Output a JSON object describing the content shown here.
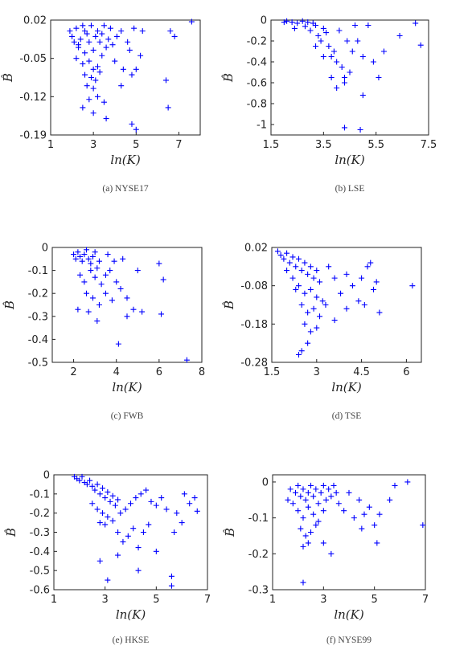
{
  "chart_data": [
    {
      "id": "a",
      "type": "scatter",
      "caption": "(a) NYSE17",
      "xlabel": "ln(K)",
      "ylabel": "B̂",
      "xlim": [
        1,
        8
      ],
      "ylim": [
        -0.19,
        0.02
      ],
      "xticks": [
        1,
        3,
        5,
        7
      ],
      "yticks": [
        0.02,
        -0.05,
        -0.12,
        -0.19
      ],
      "xticklabels": [
        "1",
        "3",
        "5",
        "7"
      ],
      "yticklabels": [
        "0.02",
        "-0.05",
        "-0.12",
        "-0.19"
      ],
      "marker": "+",
      "color": "#0000ff",
      "grid": false,
      "points": [
        [
          1.9,
          0.0
        ],
        [
          2.0,
          -0.01
        ],
        [
          2.1,
          -0.02
        ],
        [
          2.2,
          0.005
        ],
        [
          2.3,
          -0.03
        ],
        [
          2.4,
          -0.015
        ],
        [
          2.5,
          0.01
        ],
        [
          2.6,
          -0.04
        ],
        [
          2.7,
          -0.005
        ],
        [
          2.8,
          -0.02
        ],
        [
          2.9,
          0.01
        ],
        [
          3.0,
          -0.035
        ],
        [
          3.1,
          -0.01
        ],
        [
          3.2,
          0.0
        ],
        [
          3.3,
          -0.02
        ],
        [
          3.4,
          -0.045
        ],
        [
          3.5,
          0.01
        ],
        [
          3.6,
          -0.03
        ],
        [
          3.7,
          -0.015
        ],
        [
          3.8,
          0.005
        ],
        [
          2.2,
          -0.05
        ],
        [
          2.5,
          -0.06
        ],
        [
          2.8,
          -0.055
        ],
        [
          3.0,
          -0.07
        ],
        [
          3.2,
          -0.065
        ],
        [
          2.6,
          -0.08
        ],
        [
          2.9,
          -0.085
        ],
        [
          3.1,
          -0.09
        ],
        [
          3.3,
          -0.075
        ],
        [
          2.7,
          -0.1
        ],
        [
          3.0,
          -0.105
        ],
        [
          3.2,
          -0.12
        ],
        [
          2.8,
          -0.125
        ],
        [
          3.5,
          -0.13
        ],
        [
          3.0,
          -0.15
        ],
        [
          2.5,
          -0.14
        ],
        [
          3.6,
          -0.16
        ],
        [
          4.1,
          -0.01
        ],
        [
          4.3,
          0.0
        ],
        [
          4.6,
          -0.02
        ],
        [
          4.9,
          0.005
        ],
        [
          5.3,
          0.0
        ],
        [
          4.7,
          -0.035
        ],
        [
          5.2,
          -0.045
        ],
        [
          5.0,
          -0.07
        ],
        [
          4.0,
          -0.055
        ],
        [
          4.4,
          -0.07
        ],
        [
          4.8,
          -0.08
        ],
        [
          4.3,
          -0.1
        ],
        [
          4.8,
          -0.17
        ],
        [
          5.0,
          -0.18
        ],
        [
          6.4,
          -0.09
        ],
        [
          6.5,
          -0.14
        ],
        [
          6.6,
          0.0
        ],
        [
          6.8,
          -0.01
        ],
        [
          7.6,
          0.017
        ],
        [
          2.3,
          -0.025
        ],
        [
          2.6,
          0.0
        ],
        [
          3.4,
          -0.005
        ],
        [
          3.9,
          -0.025
        ]
      ]
    },
    {
      "id": "b",
      "type": "scatter",
      "caption": "(b) LSE",
      "xlabel": "ln(K)",
      "ylabel": "B̂",
      "xlim": [
        1.5,
        7.5
      ],
      "ylim": [
        -1.1,
        0
      ],
      "xticks": [
        1.5,
        3.5,
        5.5,
        7.5
      ],
      "yticks": [
        0,
        -0.2,
        -0.4,
        -0.6,
        -0.8,
        -1.0
      ],
      "xticklabels": [
        "1.5",
        "3.5",
        "5.5",
        "7.5"
      ],
      "yticklabels": [
        "0",
        "-0.2",
        "-0.4",
        "-0.6",
        "-0.8",
        "-1"
      ],
      "marker": "+",
      "color": "#0000ff",
      "grid": false,
      "points": [
        [
          2.0,
          -0.02
        ],
        [
          2.1,
          -0.01
        ],
        [
          2.3,
          -0.02
        ],
        [
          2.5,
          -0.03
        ],
        [
          2.7,
          -0.01
        ],
        [
          2.9,
          -0.02
        ],
        [
          3.1,
          -0.03
        ],
        [
          2.4,
          -0.08
        ],
        [
          2.8,
          -0.06
        ],
        [
          3.0,
          -0.1
        ],
        [
          3.2,
          -0.05
        ],
        [
          3.3,
          -0.15
        ],
        [
          3.4,
          -0.2
        ],
        [
          3.5,
          -0.08
        ],
        [
          3.6,
          -0.12
        ],
        [
          3.7,
          -0.25
        ],
        [
          3.8,
          -0.35
        ],
        [
          3.9,
          -0.3
        ],
        [
          4.0,
          -0.4
        ],
        [
          4.1,
          -0.1
        ],
        [
          4.2,
          -0.45
        ],
        [
          4.3,
          -0.55
        ],
        [
          3.8,
          -0.55
        ],
        [
          4.0,
          -0.65
        ],
        [
          4.3,
          -0.6
        ],
        [
          4.5,
          -0.5
        ],
        [
          4.6,
          -0.3
        ],
        [
          4.8,
          -0.2
        ],
        [
          5.0,
          -0.35
        ],
        [
          5.2,
          -0.05
        ],
        [
          5.4,
          -0.4
        ],
        [
          5.6,
          -0.55
        ],
        [
          5.8,
          -0.3
        ],
        [
          4.3,
          -1.03
        ],
        [
          4.9,
          -1.05
        ],
        [
          5.0,
          -0.72
        ],
        [
          6.4,
          -0.15
        ],
        [
          7.0,
          -0.03
        ],
        [
          7.2,
          -0.24
        ],
        [
          4.7,
          -0.05
        ],
        [
          4.4,
          -0.2
        ],
        [
          3.5,
          -0.35
        ],
        [
          3.2,
          -0.25
        ]
      ]
    },
    {
      "id": "c",
      "type": "scatter",
      "caption": "(c) FWB",
      "xlabel": "ln(K)",
      "ylabel": "B̂",
      "xlim": [
        1,
        8
      ],
      "ylim": [
        -0.5,
        0
      ],
      "xticks": [
        2,
        4,
        6,
        8
      ],
      "yticks": [
        0,
        -0.1,
        -0.2,
        -0.3,
        -0.4,
        -0.5
      ],
      "xticklabels": [
        "2",
        "4",
        "6",
        "8"
      ],
      "yticklabels": [
        "0",
        "-0.1",
        "-0.2",
        "-0.3",
        "-0.4",
        "-0.5"
      ],
      "marker": "+",
      "color": "#0000ff",
      "grid": false,
      "points": [
        [
          2.0,
          -0.03
        ],
        [
          2.1,
          -0.05
        ],
        [
          2.2,
          -0.02
        ],
        [
          2.3,
          -0.04
        ],
        [
          2.4,
          -0.06
        ],
        [
          2.5,
          -0.03
        ],
        [
          2.6,
          -0.01
        ],
        [
          2.7,
          -0.05
        ],
        [
          2.8,
          -0.07
        ],
        [
          2.9,
          -0.04
        ],
        [
          3.0,
          -0.02
        ],
        [
          3.1,
          -0.09
        ],
        [
          3.2,
          -0.06
        ],
        [
          2.3,
          -0.12
        ],
        [
          2.5,
          -0.15
        ],
        [
          2.8,
          -0.1
        ],
        [
          3.0,
          -0.13
        ],
        [
          3.3,
          -0.16
        ],
        [
          3.5,
          -0.12
        ],
        [
          2.6,
          -0.2
        ],
        [
          2.9,
          -0.22
        ],
        [
          3.2,
          -0.25
        ],
        [
          3.5,
          -0.2
        ],
        [
          3.8,
          -0.23
        ],
        [
          2.2,
          -0.27
        ],
        [
          2.7,
          -0.28
        ],
        [
          3.1,
          -0.32
        ],
        [
          3.7,
          -0.1
        ],
        [
          4.0,
          -0.15
        ],
        [
          4.2,
          -0.18
        ],
        [
          4.5,
          -0.22
        ],
        [
          4.8,
          -0.27
        ],
        [
          5.0,
          -0.1
        ],
        [
          4.3,
          -0.05
        ],
        [
          4.1,
          -0.42
        ],
        [
          4.5,
          -0.3
        ],
        [
          5.2,
          -0.28
        ],
        [
          6.0,
          -0.07
        ],
        [
          6.2,
          -0.14
        ],
        [
          6.1,
          -0.29
        ],
        [
          7.3,
          -0.49
        ],
        [
          3.6,
          -0.03
        ],
        [
          3.9,
          -0.06
        ]
      ]
    },
    {
      "id": "d",
      "type": "scatter",
      "caption": "(d) TSE",
      "xlabel": "ln(K)",
      "ylabel": "B̂",
      "xlim": [
        1.5,
        6.5
      ],
      "ylim": [
        -0.28,
        0.02
      ],
      "xticks": [
        1.5,
        3,
        4.5,
        6
      ],
      "yticks": [
        0.02,
        -0.08,
        -0.18,
        -0.28
      ],
      "xticklabels": [
        "1.5",
        "3",
        "4.5",
        "6"
      ],
      "yticklabels": [
        "0.02",
        "-0.08",
        "-0.18",
        "-0.28"
      ],
      "marker": "+",
      "color": "#0000ff",
      "grid": false,
      "points": [
        [
          1.7,
          0.01
        ],
        [
          1.8,
          0.0
        ],
        [
          1.9,
          -0.01
        ],
        [
          2.0,
          0.005
        ],
        [
          2.1,
          -0.02
        ],
        [
          2.2,
          -0.005
        ],
        [
          2.3,
          -0.03
        ],
        [
          2.4,
          -0.01
        ],
        [
          2.5,
          -0.04
        ],
        [
          2.6,
          -0.02
        ],
        [
          2.7,
          -0.05
        ],
        [
          2.8,
          -0.03
        ],
        [
          2.9,
          -0.06
        ],
        [
          3.0,
          -0.04
        ],
        [
          3.1,
          -0.07
        ],
        [
          2.2,
          -0.06
        ],
        [
          2.4,
          -0.08
        ],
        [
          2.6,
          -0.1
        ],
        [
          2.8,
          -0.09
        ],
        [
          3.0,
          -0.11
        ],
        [
          3.2,
          -0.12
        ],
        [
          2.5,
          -0.13
        ],
        [
          2.7,
          -0.15
        ],
        [
          2.9,
          -0.14
        ],
        [
          3.1,
          -0.16
        ],
        [
          3.3,
          -0.13
        ],
        [
          2.6,
          -0.18
        ],
        [
          2.8,
          -0.2
        ],
        [
          3.0,
          -0.19
        ],
        [
          2.7,
          -0.23
        ],
        [
          2.5,
          -0.25
        ],
        [
          2.4,
          -0.26
        ],
        [
          3.4,
          -0.03
        ],
        [
          3.6,
          -0.06
        ],
        [
          3.8,
          -0.1
        ],
        [
          4.0,
          -0.05
        ],
        [
          4.2,
          -0.08
        ],
        [
          4.5,
          -0.06
        ],
        [
          4.7,
          -0.03
        ],
        [
          4.9,
          -0.09
        ],
        [
          3.6,
          -0.17
        ],
        [
          4.0,
          -0.14
        ],
        [
          4.4,
          -0.12
        ],
        [
          4.6,
          -0.13
        ],
        [
          5.1,
          -0.15
        ],
        [
          4.8,
          -0.02
        ],
        [
          5.0,
          -0.07
        ],
        [
          6.2,
          -0.08
        ],
        [
          2.0,
          -0.04
        ],
        [
          2.3,
          -0.09
        ]
      ]
    },
    {
      "id": "e",
      "type": "scatter",
      "caption": "(e) HKSE",
      "xlabel": "ln(K)",
      "ylabel": "B̂",
      "xlim": [
        1,
        7
      ],
      "ylim": [
        -0.6,
        0
      ],
      "xticks": [
        1,
        3,
        5,
        7
      ],
      "yticks": [
        0,
        -0.1,
        -0.2,
        -0.3,
        -0.4,
        -0.5,
        -0.6
      ],
      "xticklabels": [
        "1",
        "3",
        "5",
        "7"
      ],
      "yticklabels": [
        "0",
        "-0.1",
        "-0.2",
        "-0.3",
        "-0.4",
        "-0.5",
        "-0.6"
      ],
      "marker": "+",
      "color": "#0000ff",
      "grid": false,
      "points": [
        [
          1.8,
          -0.01
        ],
        [
          1.9,
          -0.02
        ],
        [
          2.0,
          -0.03
        ],
        [
          2.1,
          -0.01
        ],
        [
          2.2,
          -0.04
        ],
        [
          2.3,
          -0.05
        ],
        [
          2.4,
          -0.03
        ],
        [
          2.5,
          -0.06
        ],
        [
          2.6,
          -0.08
        ],
        [
          2.7,
          -0.05
        ],
        [
          2.8,
          -0.1
        ],
        [
          2.9,
          -0.07
        ],
        [
          3.0,
          -0.12
        ],
        [
          3.1,
          -0.09
        ],
        [
          3.2,
          -0.14
        ],
        [
          3.3,
          -0.11
        ],
        [
          3.4,
          -0.16
        ],
        [
          3.5,
          -0.13
        ],
        [
          2.5,
          -0.15
        ],
        [
          2.7,
          -0.18
        ],
        [
          2.9,
          -0.2
        ],
        [
          3.1,
          -0.22
        ],
        [
          2.8,
          -0.25
        ],
        [
          3.0,
          -0.26
        ],
        [
          3.3,
          -0.24
        ],
        [
          3.6,
          -0.2
        ],
        [
          3.8,
          -0.18
        ],
        [
          4.0,
          -0.15
        ],
        [
          4.2,
          -0.12
        ],
        [
          4.4,
          -0.1
        ],
        [
          4.6,
          -0.08
        ],
        [
          4.8,
          -0.14
        ],
        [
          5.0,
          -0.16
        ],
        [
          5.2,
          -0.12
        ],
        [
          5.4,
          -0.18
        ],
        [
          3.5,
          -0.3
        ],
        [
          3.7,
          -0.35
        ],
        [
          3.9,
          -0.32
        ],
        [
          4.1,
          -0.28
        ],
        [
          4.3,
          -0.38
        ],
        [
          4.5,
          -0.3
        ],
        [
          4.7,
          -0.26
        ],
        [
          2.8,
          -0.45
        ],
        [
          3.1,
          -0.55
        ],
        [
          3.5,
          -0.42
        ],
        [
          4.3,
          -0.5
        ],
        [
          5.0,
          -0.4
        ],
        [
          5.6,
          -0.53
        ],
        [
          5.6,
          -0.58
        ],
        [
          5.7,
          -0.3
        ],
        [
          5.8,
          -0.2
        ],
        [
          6.0,
          -0.25
        ],
        [
          6.1,
          -0.1
        ],
        [
          6.3,
          -0.15
        ],
        [
          6.5,
          -0.12
        ],
        [
          6.6,
          -0.19
        ]
      ]
    },
    {
      "id": "f",
      "type": "scatter",
      "caption": "(f) NYSE99",
      "xlabel": "ln(K)",
      "ylabel": "B̂",
      "xlim": [
        1,
        7
      ],
      "ylim": [
        -0.3,
        0.02
      ],
      "xticks": [
        1,
        3,
        5,
        7
      ],
      "yticks": [
        0,
        -0.1,
        -0.2,
        -0.3
      ],
      "xticklabels": [
        "1",
        "3",
        "5",
        "7"
      ],
      "yticklabels": [
        "0",
        "-0.1",
        "-0.2",
        "-0.3"
      ],
      "marker": "+",
      "color": "#0000ff",
      "grid": false,
      "points": [
        [
          1.6,
          -0.05
        ],
        [
          1.7,
          -0.02
        ],
        [
          1.8,
          -0.06
        ],
        [
          1.9,
          -0.03
        ],
        [
          2.0,
          -0.01
        ],
        [
          2.1,
          -0.04
        ],
        [
          2.2,
          -0.02
        ],
        [
          2.3,
          -0.05
        ],
        [
          2.4,
          -0.03
        ],
        [
          2.5,
          -0.01
        ],
        [
          2.6,
          -0.04
        ],
        [
          2.7,
          -0.02
        ],
        [
          2.8,
          -0.06
        ],
        [
          2.9,
          -0.03
        ],
        [
          3.0,
          -0.01
        ],
        [
          3.1,
          -0.05
        ],
        [
          3.2,
          -0.02
        ],
        [
          3.3,
          -0.04
        ],
        [
          3.4,
          -0.01
        ],
        [
          3.5,
          -0.03
        ],
        [
          2.0,
          -0.08
        ],
        [
          2.2,
          -0.1
        ],
        [
          2.4,
          -0.07
        ],
        [
          2.6,
          -0.09
        ],
        [
          2.8,
          -0.11
        ],
        [
          3.0,
          -0.08
        ],
        [
          2.1,
          -0.13
        ],
        [
          2.3,
          -0.15
        ],
        [
          2.5,
          -0.14
        ],
        [
          2.7,
          -0.12
        ],
        [
          2.2,
          -0.18
        ],
        [
          2.4,
          -0.17
        ],
        [
          3.0,
          -0.17
        ],
        [
          3.3,
          -0.2
        ],
        [
          2.2,
          -0.28
        ],
        [
          3.6,
          -0.06
        ],
        [
          3.8,
          -0.08
        ],
        [
          4.0,
          -0.03
        ],
        [
          4.2,
          -0.1
        ],
        [
          4.4,
          -0.05
        ],
        [
          4.6,
          -0.09
        ],
        [
          4.8,
          -0.07
        ],
        [
          5.0,
          -0.12
        ],
        [
          5.1,
          -0.17
        ],
        [
          5.2,
          -0.09
        ],
        [
          5.6,
          -0.05
        ],
        [
          5.8,
          -0.01
        ],
        [
          6.3,
          0.0
        ],
        [
          6.9,
          -0.12
        ],
        [
          4.5,
          -0.13
        ]
      ]
    }
  ]
}
